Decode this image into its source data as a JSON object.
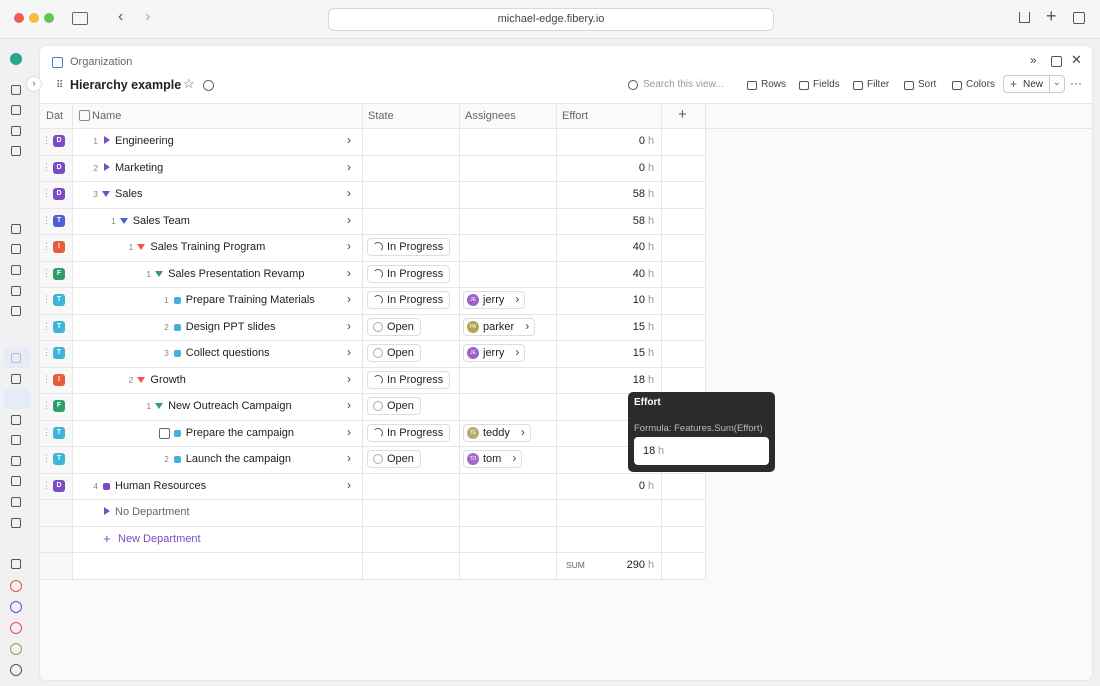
{
  "browser": {
    "url": "michael-edge.fibery.io"
  },
  "header": {
    "breadcrumb": "Organization",
    "title": "Hierarchy example"
  },
  "toolbar": {
    "search": "Search this view...",
    "items": [
      "Rows",
      "Fields",
      "Filter",
      "Sort",
      "Colors"
    ],
    "new": "New"
  },
  "table": {
    "columns": [
      "Dat",
      "Name",
      "State",
      "Assignees",
      "Effort"
    ],
    "effort_unit": "h",
    "rows": [
      {
        "badge": "D",
        "color": "#7b4cc4",
        "number": 1,
        "name": "Engineering",
        "collapsed": true,
        "effort": 0
      },
      {
        "badge": "D",
        "color": "#7b4cc4",
        "number": 2,
        "name": "Marketing",
        "collapsed": true,
        "effort": 0
      },
      {
        "badge": "D",
        "color": "#7b4cc4",
        "number": 3,
        "name": "Sales",
        "effort": 58,
        "children": [
          {
            "badge": "T",
            "color": "#4f5fcf",
            "number": 1,
            "name": "Sales Team",
            "effort": 58,
            "children": [
              {
                "badge": "I",
                "color": "#ea5b3a",
                "number": 1,
                "name": "Sales Training Program",
                "state": "In Progress",
                "effort": 40,
                "children": [
                  {
                    "badge": "F",
                    "color": "#2f9d6c",
                    "number": 1,
                    "name": "Sales Presentation Revamp",
                    "state": "In Progress",
                    "effort": 40,
                    "children": [
                      {
                        "badge": "T",
                        "color": "#3cb5d6",
                        "number": 1,
                        "name": "Prepare Training Materials",
                        "state": "In Progress",
                        "assignee": {
                          "initials": "JE",
                          "name": "jerry",
                          "color": "#9b62c9"
                        },
                        "effort": 10
                      },
                      {
                        "badge": "T",
                        "color": "#3cb5d6",
                        "number": 2,
                        "name": "Design PPT slides",
                        "state": "Open",
                        "assignee": {
                          "initials": "PA",
                          "name": "parker",
                          "color": "#b4a352"
                        },
                        "effort": 15
                      },
                      {
                        "badge": "T",
                        "color": "#3cb5d6",
                        "number": 3,
                        "name": "Collect questions",
                        "state": "Open",
                        "assignee": {
                          "initials": "JE",
                          "name": "jerry",
                          "color": "#9b62c9"
                        },
                        "effort": 15
                      }
                    ]
                  }
                ]
              },
              {
                "badge": "I",
                "color": "#ea5b3a",
                "number": 2,
                "name": "Growth",
                "state": "In Progress",
                "effort": 18,
                "children": [
                  {
                    "badge": "F",
                    "color": "#2f9d6c",
                    "number": 1,
                    "name": "New Outreach Campaign",
                    "state": "Open",
                    "children": [
                      {
                        "badge": "T",
                        "color": "#3cb5d6",
                        "name": "Prepare the campaign",
                        "state": "In Progress",
                        "assignee": {
                          "initials": "TE",
                          "name": "teddy",
                          "color": "#b8ab6c"
                        }
                      },
                      {
                        "badge": "T",
                        "color": "#3cb5d6",
                        "number": 2,
                        "name": "Launch the campaign",
                        "state": "Open",
                        "assignee": {
                          "initials": "TO",
                          "name": "tom",
                          "color": "#a468c9"
                        }
                      }
                    ]
                  }
                ]
              }
            ]
          }
        ]
      },
      {
        "badge": "D",
        "color": "#7b4cc4",
        "number": 4,
        "name": "Human Resources",
        "effort": 0
      }
    ],
    "no_department": "No Department",
    "new_department": "New Department",
    "sum_label": "SUM",
    "sum": 290
  },
  "tooltip": {
    "title": "Effort",
    "formula": "Formula: Features.Sum(Effort)",
    "value": 18
  }
}
